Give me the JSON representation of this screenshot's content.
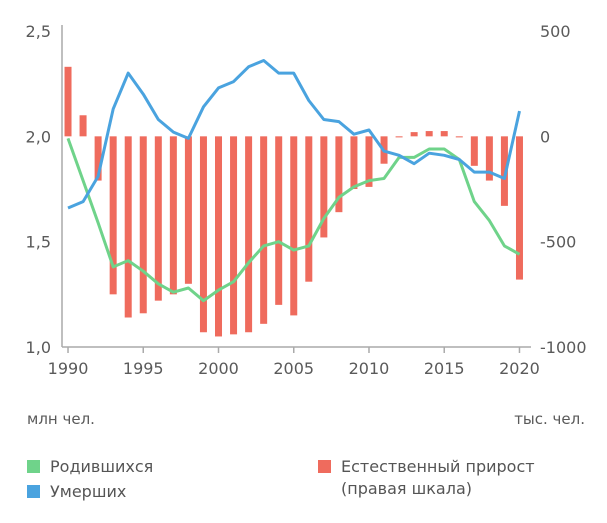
{
  "chart_data": {
    "type": "bar+line",
    "title": "",
    "x": [
      1990,
      1991,
      1992,
      1993,
      1994,
      1995,
      1996,
      1997,
      1998,
      1999,
      2000,
      2001,
      2002,
      2003,
      2004,
      2005,
      2006,
      2007,
      2008,
      2009,
      2010,
      2011,
      2012,
      2013,
      2014,
      2015,
      2016,
      2017,
      2018,
      2019,
      2020
    ],
    "xticks": [
      1990,
      1995,
      2000,
      2005,
      2010,
      2015,
      2020
    ],
    "xlim": [
      1989.6,
      2020.5
    ],
    "y_left": {
      "label": "млн чел.",
      "lim": [
        1.0,
        2.5
      ],
      "ticks": [
        "1,0",
        "1,5",
        "2,0",
        "2,5"
      ],
      "tick_values": [
        1.0,
        1.5,
        2.0,
        2.5
      ]
    },
    "y_right": {
      "label": "тыс. чел.",
      "lim": [
        -1000,
        500
      ],
      "ticks": [
        "-1000",
        "-500",
        "0",
        "500"
      ],
      "tick_values": [
        -1000,
        -500,
        0,
        500
      ]
    },
    "series": [
      {
        "name": "Родившихся",
        "type": "line",
        "axis": "left",
        "color": "#6fd38a",
        "values": [
          1.99,
          1.79,
          1.59,
          1.38,
          1.41,
          1.36,
          1.3,
          1.26,
          1.28,
          1.22,
          1.27,
          1.31,
          1.4,
          1.48,
          1.5,
          1.46,
          1.48,
          1.61,
          1.71,
          1.76,
          1.79,
          1.8,
          1.9,
          1.9,
          1.94,
          1.94,
          1.89,
          1.69,
          1.6,
          1.48,
          1.44
        ]
      },
      {
        "name": "Умерших",
        "type": "line",
        "axis": "left",
        "color": "#4aa3df",
        "values": [
          1.66,
          1.69,
          1.81,
          2.13,
          2.3,
          2.2,
          2.08,
          2.02,
          1.99,
          2.14,
          2.23,
          2.26,
          2.33,
          2.36,
          2.3,
          2.3,
          2.17,
          2.08,
          2.07,
          2.01,
          2.03,
          1.93,
          1.91,
          1.87,
          1.92,
          1.91,
          1.89,
          1.83,
          1.83,
          1.8,
          2.12
        ]
      },
      {
        "name": "Естественный прирост",
        "name2": "(правая шкала)",
        "type": "bar",
        "axis": "right",
        "color": "#ef6b5d",
        "values": [
          330,
          100,
          -210,
          -750,
          -860,
          -840,
          -780,
          -750,
          -700,
          -930,
          -950,
          -940,
          -930,
          -890,
          -800,
          -850,
          -690,
          -480,
          -360,
          -250,
          -240,
          -130,
          -5,
          20,
          25,
          25,
          -5,
          -140,
          -210,
          -330,
          -680
        ]
      }
    ],
    "legend_placement": "bottom",
    "grid": false
  }
}
